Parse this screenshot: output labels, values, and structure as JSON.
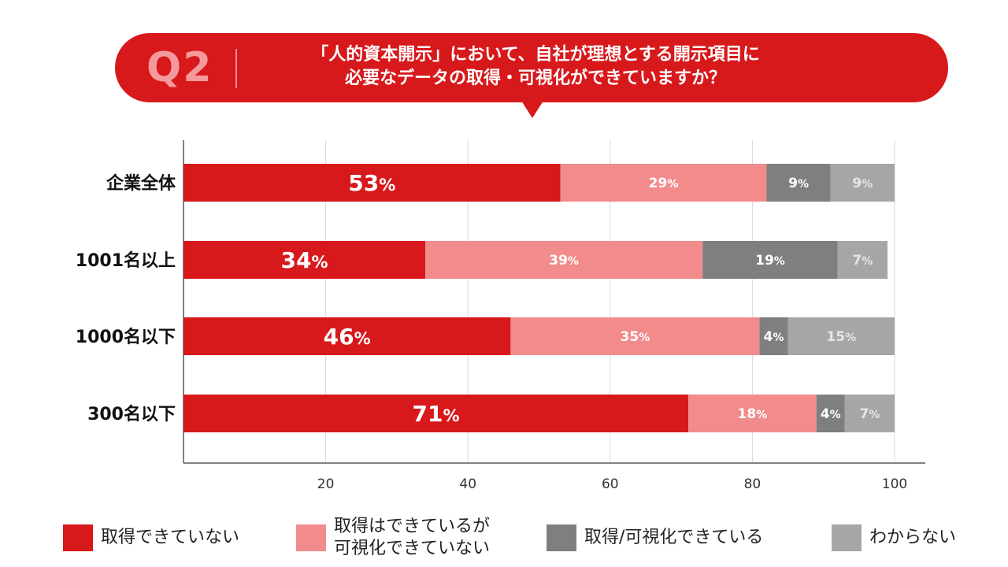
{
  "question": {
    "label": "Q2",
    "line1": "「人的資本開示」において、自社が理想とする開示項目に",
    "line2": "必要なデータの取得・可視化ができていますか？"
  },
  "colors": {
    "banner": "#d7191c",
    "not_acquired": "#d7191c",
    "acquired_not_visualized": "#f28b8c",
    "acquired_visualized": "#7f7f7f",
    "unknown": "#a6a6a6"
  },
  "chart_data": {
    "type": "bar",
    "orientation": "horizontal",
    "stacked": true,
    "categories": [
      "企業全体",
      "1001名以上",
      "1000名以下",
      "300名以下"
    ],
    "series": [
      {
        "name": "取得できていない",
        "values": [
          53,
          34,
          46,
          71
        ],
        "labels": [
          "53",
          "34",
          "46",
          "71"
        ]
      },
      {
        "name": "取得はできているが可視化できていない",
        "values": [
          29,
          39,
          35,
          18
        ],
        "labels": [
          "29",
          "39",
          "35",
          "18"
        ]
      },
      {
        "name": "取得/可視化できている",
        "values": [
          9,
          19,
          4,
          4
        ],
        "labels": [
          "9",
          "19",
          "4",
          "4"
        ]
      },
      {
        "name": "わからない",
        "values": [
          9,
          7,
          15,
          7
        ],
        "labels": [
          "9",
          "7",
          "15",
          "7"
        ]
      }
    ],
    "value_suffix": "%",
    "xticks": [
      "20",
      "40",
      "60",
      "80",
      "100"
    ],
    "xlim": [
      0,
      100
    ],
    "grid": true,
    "legend_position": "bottom"
  },
  "legend": [
    {
      "line1": "取得できていない",
      "line2": ""
    },
    {
      "line1": "取得はできているが",
      "line2": "可視化できていない"
    },
    {
      "line1": "取得/可視化できている",
      "line2": ""
    },
    {
      "line1": "わからない",
      "line2": ""
    }
  ]
}
